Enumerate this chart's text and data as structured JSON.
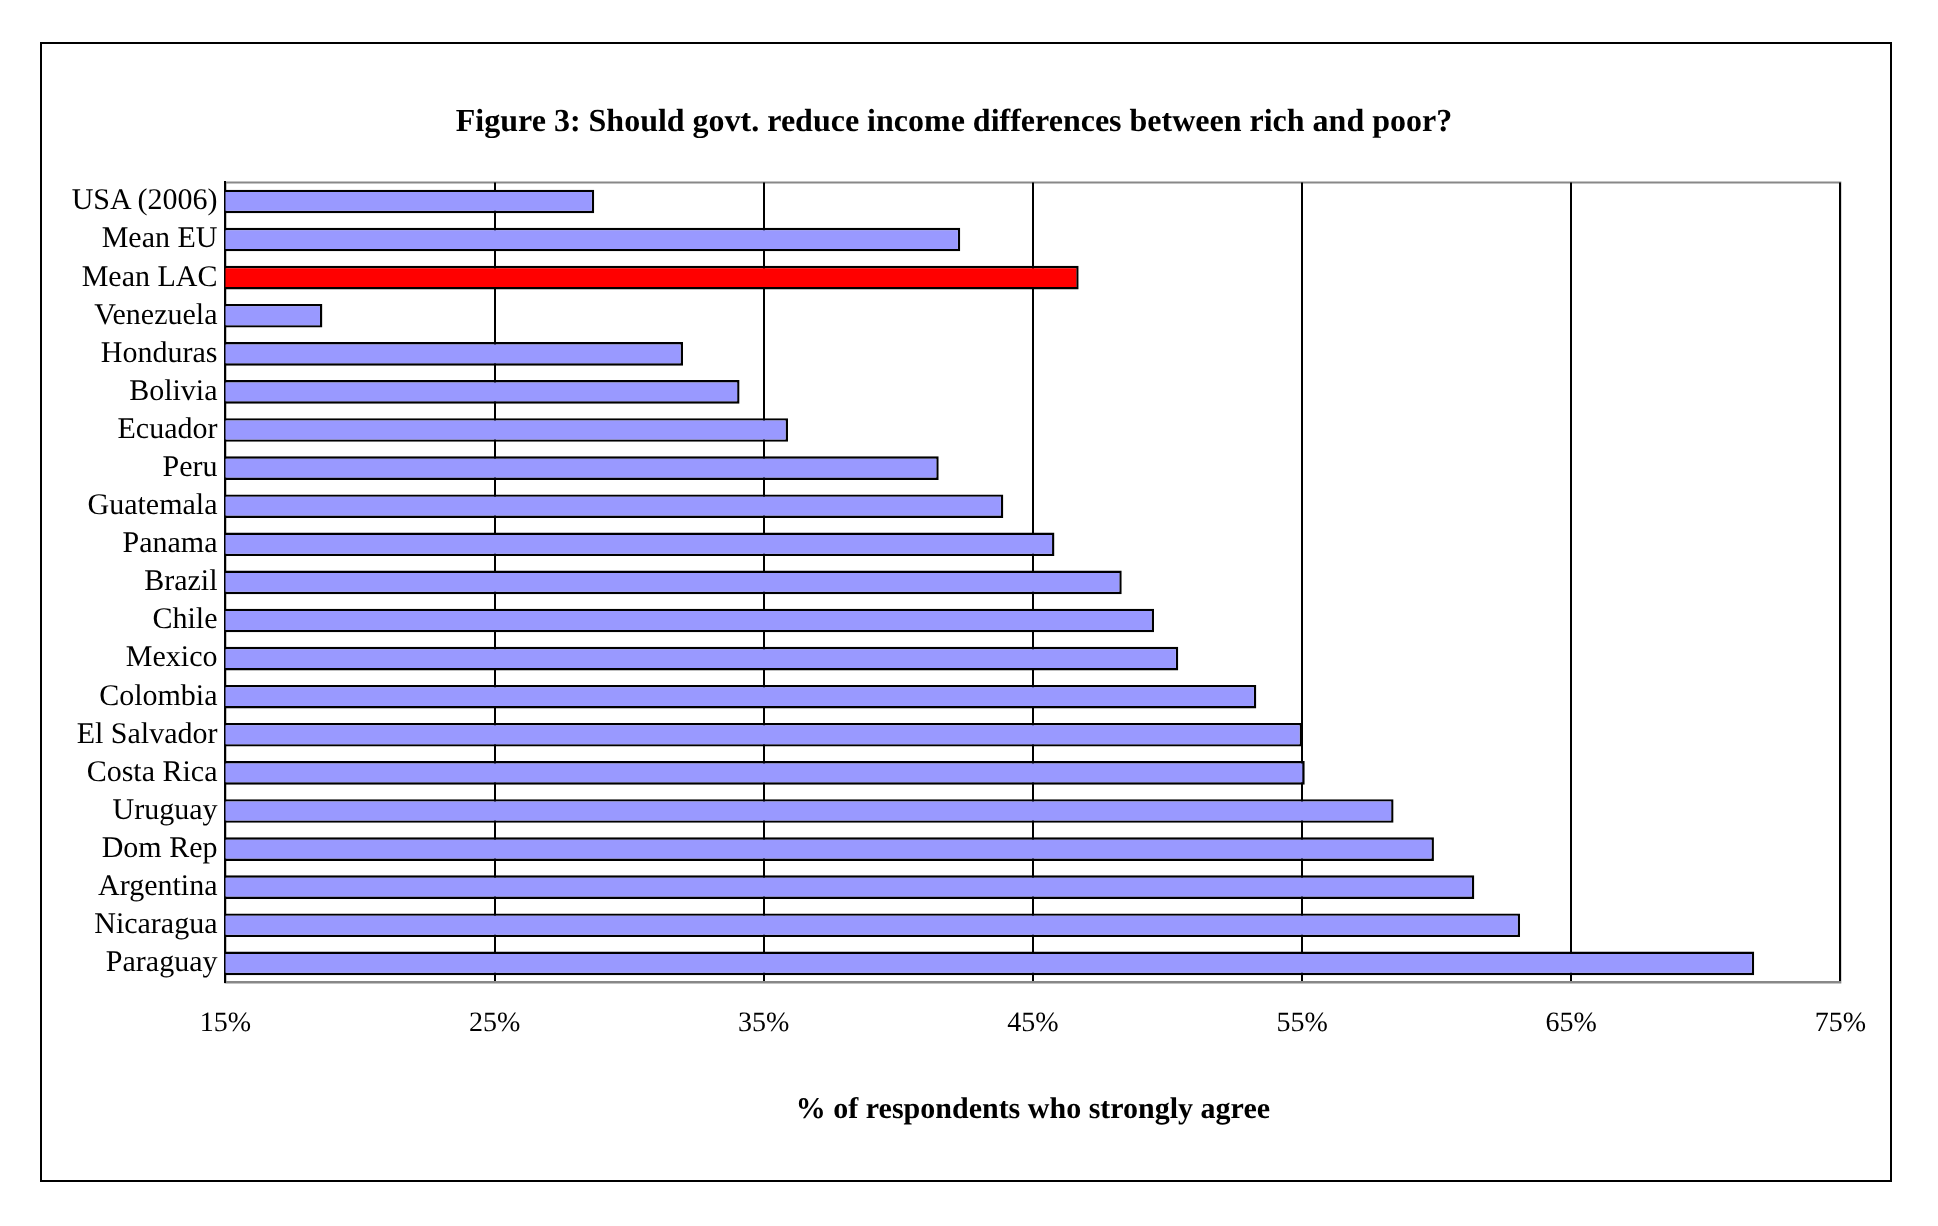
{
  "chart_data": {
    "type": "bar",
    "orientation": "horizontal",
    "title": "Figure 3: Should govt. reduce income differences between rich and poor?",
    "xlabel": "% of respondents who strongly agree",
    "categories": [
      "USA (2006)",
      "Mean EU",
      "Mean LAC",
      "Venezuela",
      "Honduras",
      "Bolivia",
      "Ecuador",
      "Peru",
      "Guatemala",
      "Panama",
      "Brazil",
      "Chile",
      "Mexico",
      "Colombia",
      "El Salvador",
      "Costa Rica",
      "Uruguay",
      "Dom Rep",
      "Argentina",
      "Nicaragua",
      "Paraguay"
    ],
    "values": [
      28.7,
      42.3,
      46.7,
      18.6,
      32.0,
      34.1,
      35.9,
      41.5,
      43.9,
      45.8,
      48.3,
      49.5,
      50.4,
      53.3,
      55.0,
      55.1,
      58.4,
      59.9,
      61.4,
      63.1,
      71.8
    ],
    "colors": [
      "#9999ff",
      "#9999ff",
      "#ff0000",
      "#9999ff",
      "#9999ff",
      "#9999ff",
      "#9999ff",
      "#9999ff",
      "#9999ff",
      "#9999ff",
      "#9999ff",
      "#9999ff",
      "#9999ff",
      "#9999ff",
      "#9999ff",
      "#9999ff",
      "#9999ff",
      "#9999ff",
      "#9999ff",
      "#9999ff",
      "#9999ff"
    ],
    "xlim": [
      15,
      75
    ],
    "xticks": [
      {
        "value": 15,
        "label": "15%"
      },
      {
        "value": 25,
        "label": "25%"
      },
      {
        "value": 35,
        "label": "35%"
      },
      {
        "value": 45,
        "label": "45%"
      },
      {
        "value": 55,
        "label": "55%"
      },
      {
        "value": 65,
        "label": "65%"
      },
      {
        "value": 75,
        "label": "75%"
      }
    ],
    "grid": "x",
    "legend": false
  }
}
